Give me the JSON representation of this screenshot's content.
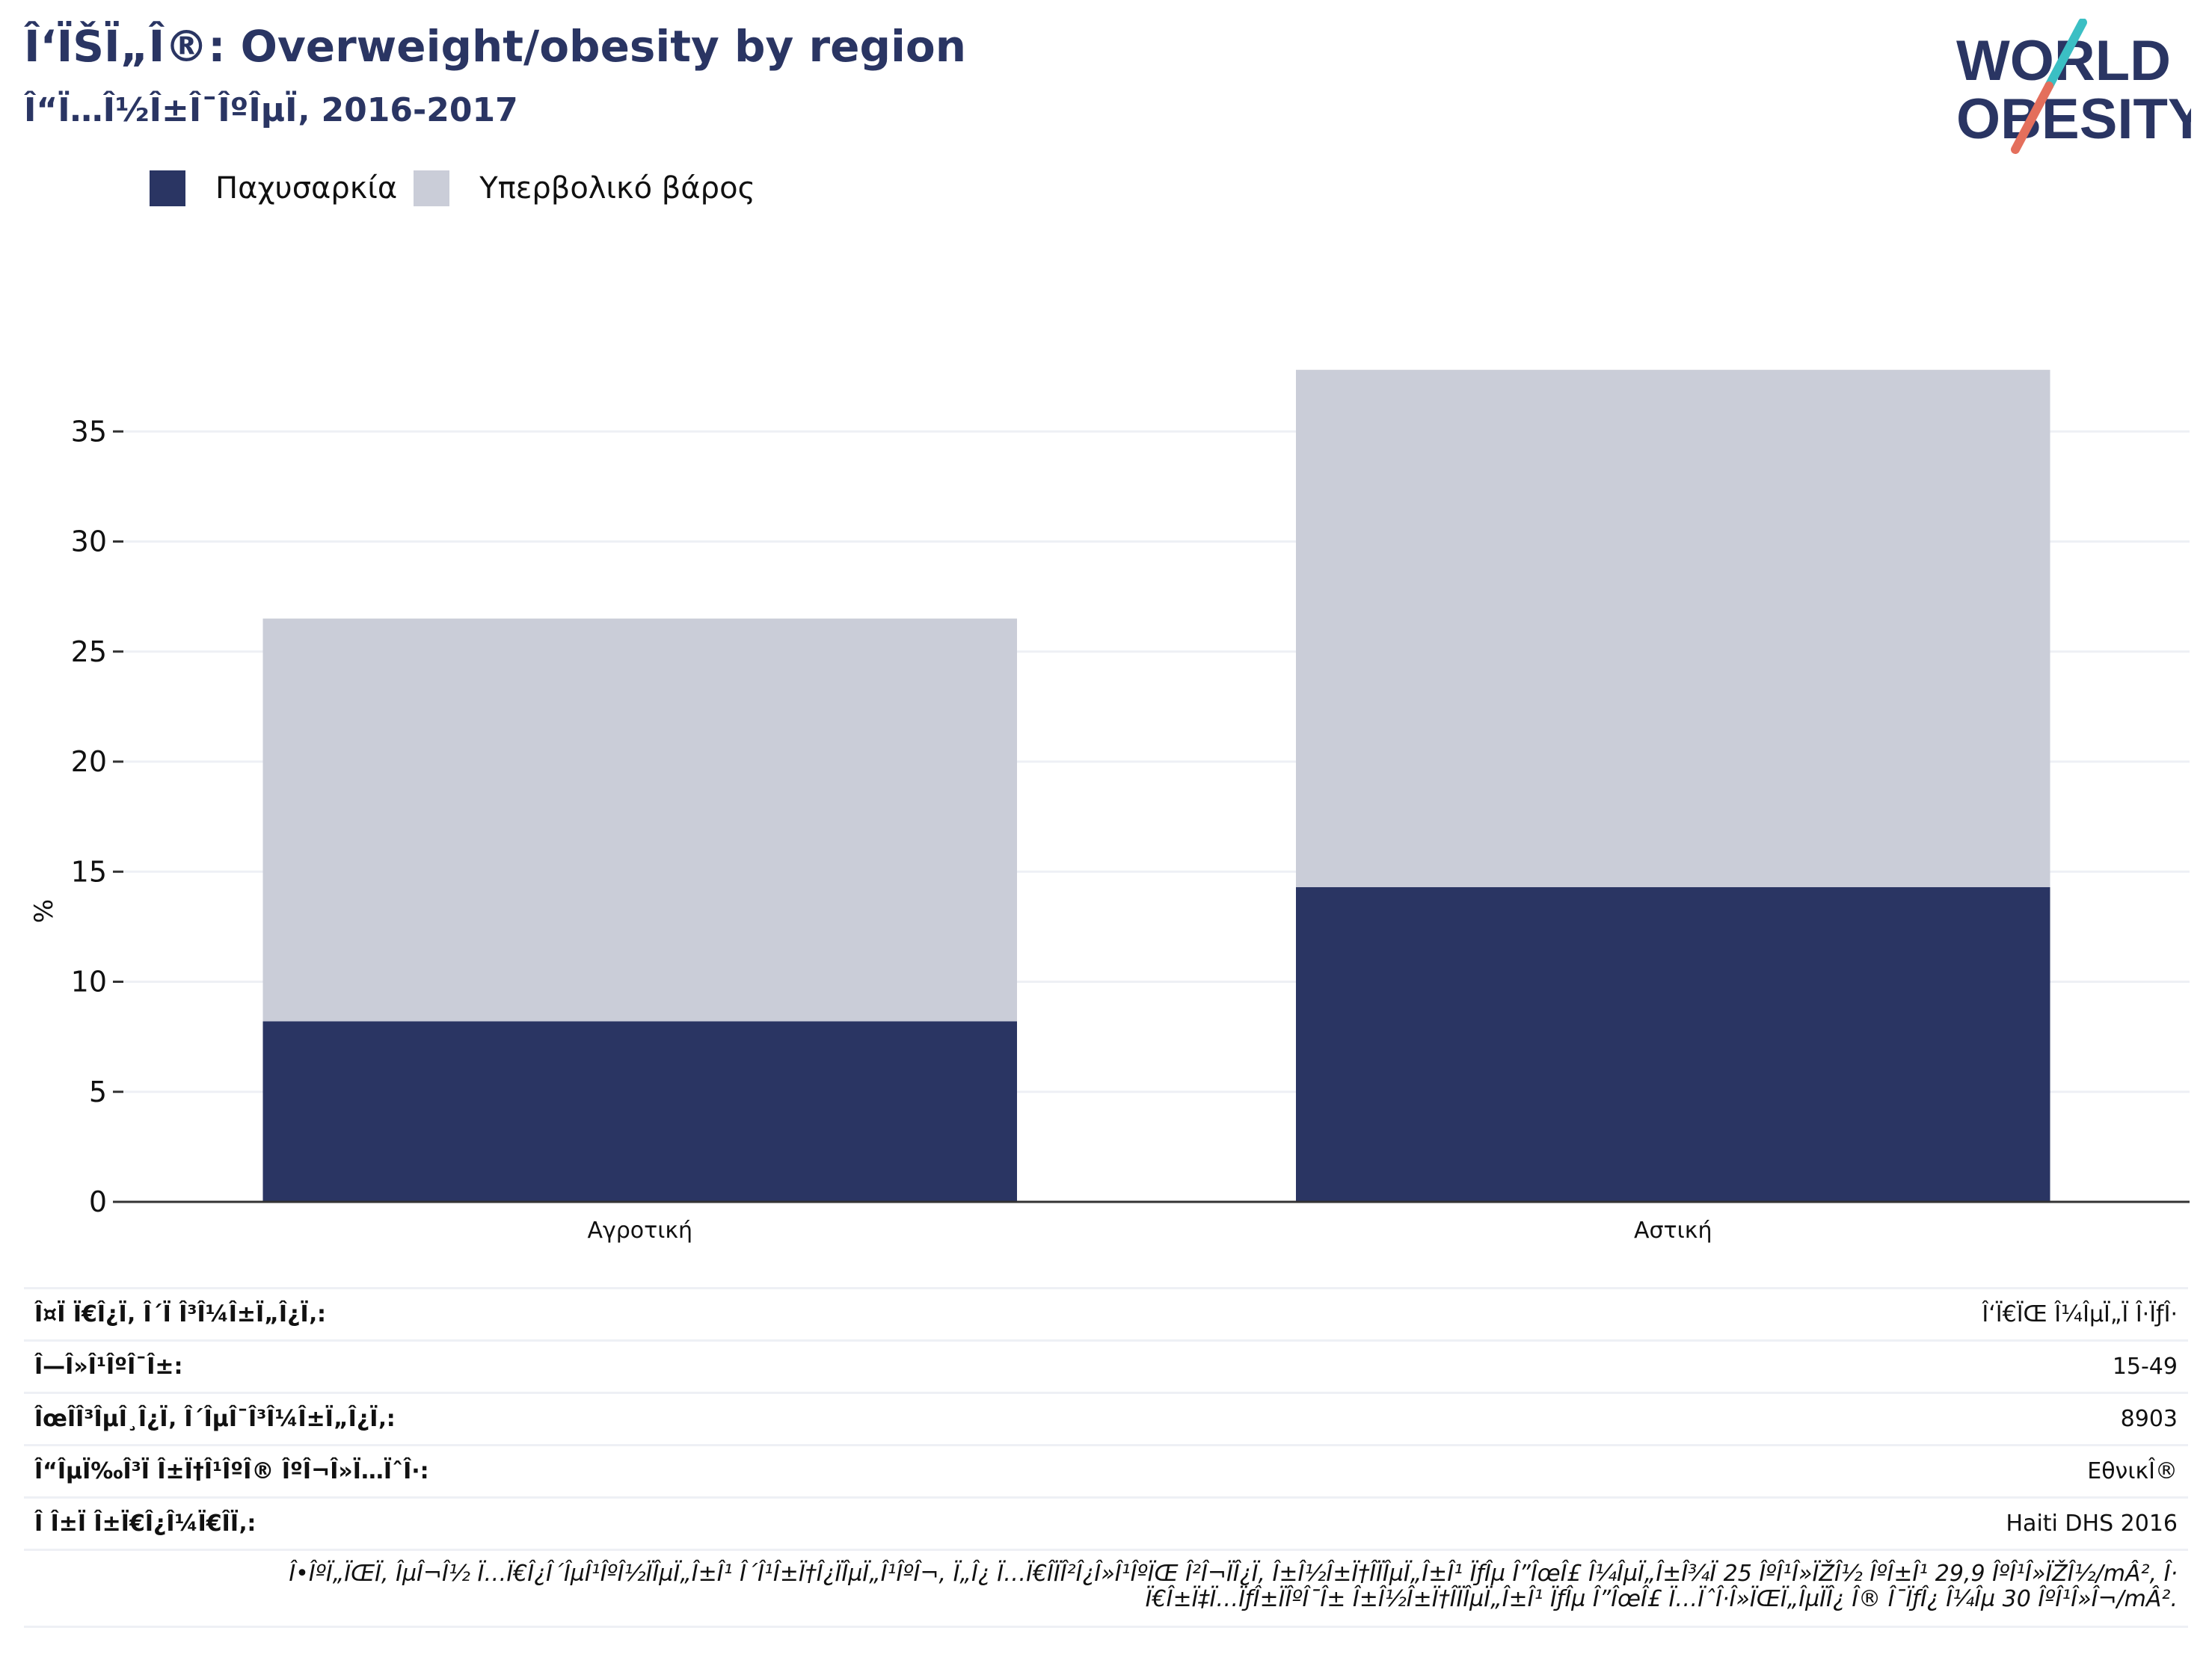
{
  "header": {
    "title": "Î‘ÏŠÏ„Î®: Overweight/obesity by region",
    "subtitle": "Î“Ï…Î½Î±Î¯ÎºÎµÏ‚ 2016-2017"
  },
  "logo": {
    "line1": "WORLD",
    "line2": "OBESITY",
    "icon": "world-obesity-logo"
  },
  "colors": {
    "obesity": "#2a3563",
    "overweight": "#cacdd8",
    "grid": "#eef0f5",
    "axis": "#333333",
    "logo_teal": "#3bbfc4",
    "logo_coral": "#e46f5c"
  },
  "chart_data": {
    "type": "bar",
    "stacked": true,
    "categories": [
      "Αγροτική",
      "Αστική"
    ],
    "series": [
      {
        "name": "Παχυσαρκία",
        "values": [
          8.2,
          14.3
        ]
      },
      {
        "name": "Υπερβολικό βάρος",
        "values": [
          18.3,
          23.5
        ]
      }
    ],
    "ylabel": "%",
    "ylim": [
      0,
      40
    ],
    "yticks": [
      0,
      5,
      10,
      15,
      20,
      25,
      30,
      35
    ],
    "grid": true,
    "legend_position": "top-left"
  },
  "table": {
    "rows": [
      {
        "label": "Î¤Ï Ï€Î¿Ï‚ Î´Ï Î³Î¼Î±Ï„Î¿Ï‚:",
        "value": "Î‘Ï€ÏŒ Î¼ÎµÏ„Ï Î·ÏƒÎ·"
      },
      {
        "label": "Î—Î»Î¹ÎºÎ¯Î±:",
        "value": "15-49"
      },
      {
        "label": "ÎœÎ­Î³ÎµÎ¸Î¿Ï‚ Î´ÎµÎ¯Î³Î¼Î±Ï„Î¿Ï‚:",
        "value": "8903"
      },
      {
        "label": "Î“ÎµÏ‰Î³Ï Î±Ï†Î¹ÎºÎ® ÎºÎ¬Î»Ï…ÏˆÎ·:",
        "value": "ΕθνικÎ®"
      },
      {
        "label": "Î Î±Ï Î±Ï€Î¿Î¼Ï€Î­Ï‚:",
        "value": "Haiti DHS 2016"
      }
    ],
    "note_line1": "Î•ÎºÏ„ÏŒÏ‚ ÎµÎ¬Î½ Ï…Ï€Î¿Î´ÎµÎ¹ÎºÎ½ÏÎµÏ„Î±Î¹ Î´Î¹Î±Ï†Î¿ÏÎµÏ„Î¹ÎºÎ¬, Ï„Î¿ Ï…Ï€Î­ÏÎ²Î¿Î»Î¹ÎºÏŒ Î²Î¬ÏÎ¿Ï‚ Î±Î½Î±Ï†Î­ÏÎµÏ„Î±Î¹ ÏƒÎµ Î”ÎœÎ£ Î¼ÎµÏ„Î±Î¾Ï 25 ÎºÎ¹Î»ÏŽÎ½ ÎºÎ±Î¹ 29,9 ÎºÎ¹Î»ÏŽÎ½/mÂ², Î·",
    "note_line2": "Ï€Î±Ï‡Ï…ÏƒÎ±ÏÎºÎ¯Î± Î±Î½Î±Ï†Î­ÏÎµÏ„Î±Î¹ ÏƒÎµ Î”ÎœÎ£ Ï…ÏˆÎ·Î»ÏŒÏ„ÎµÏÎ¿ Î® Î¯ÏƒÎ¿ Î¼Îµ 30 ÎºÎ¹Î»Î¬/mÂ²."
  }
}
